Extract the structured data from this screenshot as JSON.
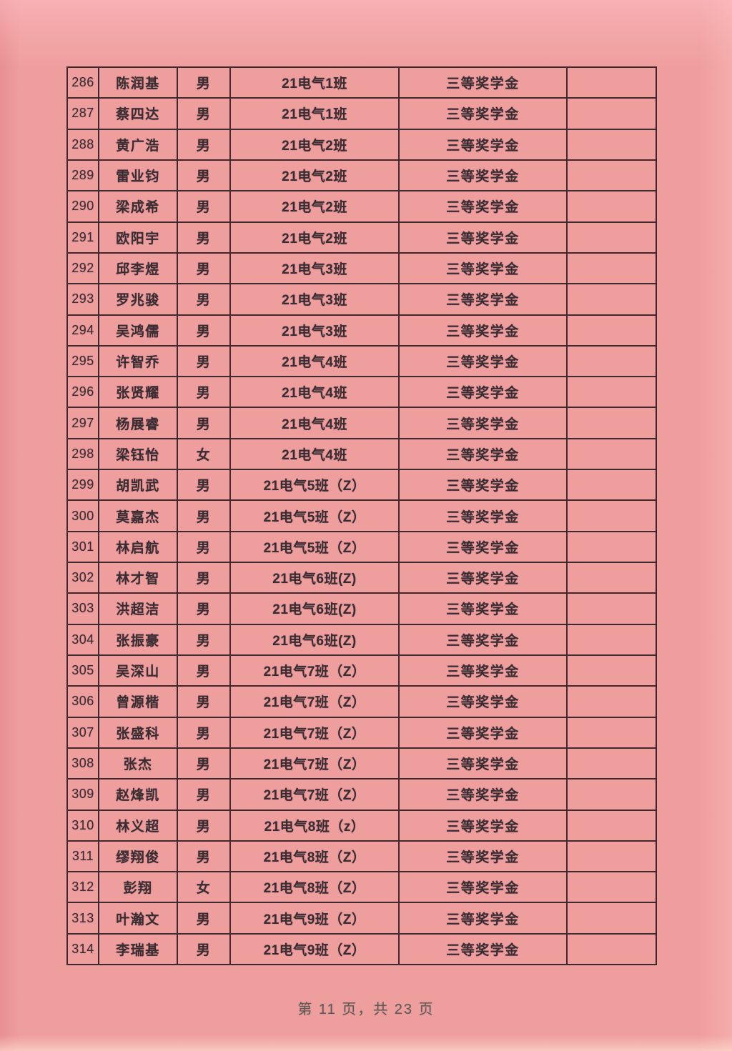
{
  "page": {
    "footer_text": "第 11 页，共 23 页"
  },
  "colors": {
    "paper_pink": "#ef9e9e",
    "paper_top_edge": "#f5b4b7",
    "paper_bottom_edge": "#f4c5b4",
    "grid_line": "#40292e",
    "cell_text": "#382d32",
    "footer_text": "#5f5b56"
  },
  "table": {
    "cell_names": [
      "row-number",
      "student-name",
      "gender",
      "class-name",
      "award-name",
      "remark"
    ],
    "rows": [
      [
        "286",
        "陈润基",
        "男",
        "21电气1班",
        "三等奖学金",
        ""
      ],
      [
        "287",
        "蔡四达",
        "男",
        "21电气1班",
        "三等奖学金",
        ""
      ],
      [
        "288",
        "黄广浩",
        "男",
        "21电气2班",
        "三等奖学金",
        ""
      ],
      [
        "289",
        "雷业钧",
        "男",
        "21电气2班",
        "三等奖学金",
        ""
      ],
      [
        "290",
        "梁成希",
        "男",
        "21电气2班",
        "三等奖学金",
        ""
      ],
      [
        "291",
        "欧阳宇",
        "男",
        "21电气2班",
        "三等奖学金",
        ""
      ],
      [
        "292",
        "邱李煜",
        "男",
        "21电气3班",
        "三等奖学金",
        ""
      ],
      [
        "293",
        "罗兆骏",
        "男",
        "21电气3班",
        "三等奖学金",
        ""
      ],
      [
        "294",
        "吴鸿儒",
        "男",
        "21电气3班",
        "三等奖学金",
        ""
      ],
      [
        "295",
        "许智乔",
        "男",
        "21电气4班",
        "三等奖学金",
        ""
      ],
      [
        "296",
        "张贤耀",
        "男",
        "21电气4班",
        "三等奖学金",
        ""
      ],
      [
        "297",
        "杨展睿",
        "男",
        "21电气4班",
        "三等奖学金",
        ""
      ],
      [
        "298",
        "梁钰怡",
        "女",
        "21电气4班",
        "三等奖学金",
        ""
      ],
      [
        "299",
        "胡凯武",
        "男",
        "21电气5班（Z）",
        "三等奖学金",
        ""
      ],
      [
        "300",
        "莫嘉杰",
        "男",
        "21电气5班（Z）",
        "三等奖学金",
        ""
      ],
      [
        "301",
        "林启航",
        "男",
        "21电气5班（Z）",
        "三等奖学金",
        ""
      ],
      [
        "302",
        "林才智",
        "男",
        "21电气6班(Z)",
        "三等奖学金",
        ""
      ],
      [
        "303",
        "洪超洁",
        "男",
        "21电气6班(Z)",
        "三等奖学金",
        ""
      ],
      [
        "304",
        "张振豪",
        "男",
        "21电气6班(Z)",
        "三等奖学金",
        ""
      ],
      [
        "305",
        "吴深山",
        "男",
        "21电气7班（Z）",
        "三等奖学金",
        ""
      ],
      [
        "306",
        "曾源楷",
        "男",
        "21电气7班（Z）",
        "三等奖学金",
        ""
      ],
      [
        "307",
        "张盛科",
        "男",
        "21电气7班（Z）",
        "三等奖学金",
        ""
      ],
      [
        "308",
        "张杰",
        "男",
        "21电气7班（Z）",
        "三等奖学金",
        ""
      ],
      [
        "309",
        "赵烽凯",
        "男",
        "21电气7班（Z）",
        "三等奖学金",
        ""
      ],
      [
        "310",
        "林义超",
        "男",
        "21电气8班（z）",
        "三等奖学金",
        ""
      ],
      [
        "311",
        "缪翔俊",
        "男",
        "21电气8班（Z）",
        "三等奖学金",
        ""
      ],
      [
        "312",
        "彭翔",
        "女",
        "21电气8班（Z）",
        "三等奖学金",
        ""
      ],
      [
        "313",
        "叶瀚文",
        "男",
        "21电气9班（Z）",
        "三等奖学金",
        ""
      ],
      [
        "314",
        "李瑞基",
        "男",
        "21电气9班（Z）",
        "三等奖学金",
        ""
      ]
    ]
  }
}
